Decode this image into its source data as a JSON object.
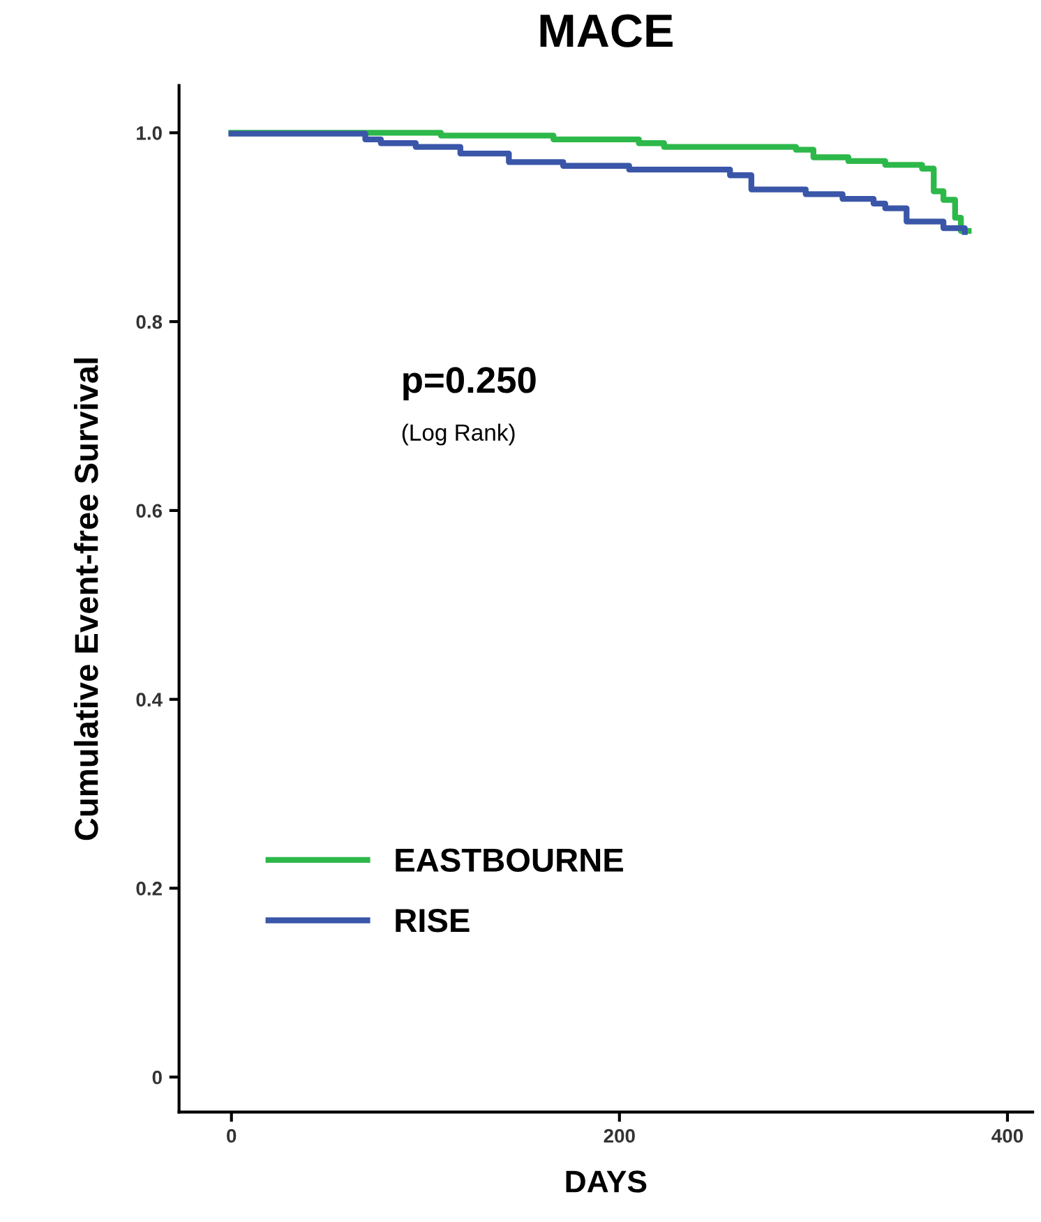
{
  "chart_data": {
    "type": "step",
    "title": "MACE",
    "xlabel": "DAYS",
    "ylabel": "Cumulative Event-free Survival",
    "xlim": [
      -27,
      413
    ],
    "xticks": [
      0,
      200,
      400
    ],
    "ylim": [
      -0.037,
      1.05
    ],
    "yticks": [
      {
        "value": 0,
        "label": "0"
      },
      0.2,
      0.4,
      0.6,
      0.8,
      {
        "value": 1.0,
        "label": "1.0"
      }
    ],
    "grid": false,
    "legend": "bottom left",
    "marker": "none",
    "line_style": "solid",
    "annotations": [
      "p=0.250",
      "(Log Rank)"
    ],
    "series": [
      {
        "name": "EASTBOURNE",
        "color": "#2db84a",
        "x": [
          0,
          108,
          166,
          210,
          223,
          291,
          300,
          318,
          337,
          356,
          362,
          367,
          373,
          376,
          380
        ],
        "values": [
          1.0,
          0.997,
          0.993,
          0.989,
          0.985,
          0.982,
          0.974,
          0.97,
          0.966,
          0.962,
          0.938,
          0.929,
          0.91,
          0.896,
          0.896
        ]
      },
      {
        "name": "RISE",
        "color": "#3a56a8",
        "x": [
          0,
          69,
          77,
          95,
          118,
          143,
          171,
          205,
          257,
          268,
          296,
          315,
          331,
          337,
          348,
          367,
          378
        ],
        "values": [
          0.999,
          0.993,
          0.989,
          0.985,
          0.978,
          0.969,
          0.965,
          0.961,
          0.955,
          0.94,
          0.935,
          0.93,
          0.925,
          0.92,
          0.906,
          0.899,
          0.895
        ]
      }
    ]
  }
}
